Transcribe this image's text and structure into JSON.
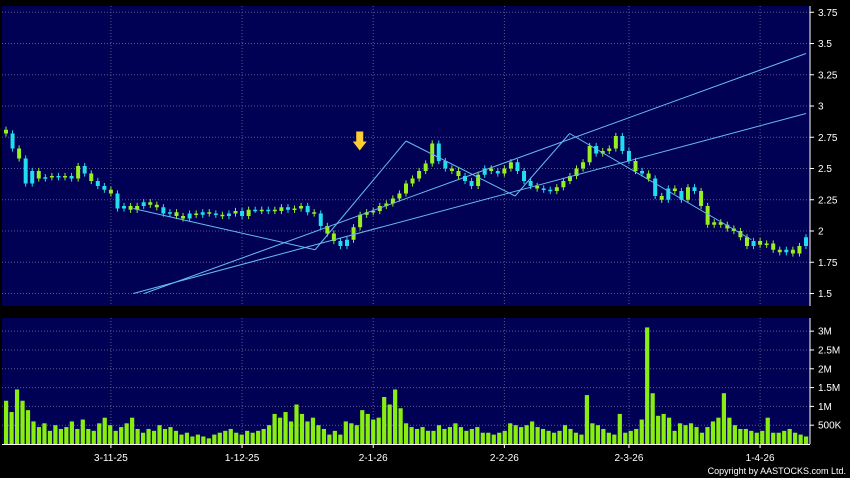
{
  "chart_data": [
    {
      "type": "candlestick",
      "title": "",
      "colors": {
        "up": "#99ee22",
        "down": "#22ddee",
        "background": "#000055",
        "grid": "#5a5a88",
        "trendline": "#66bbee",
        "arrow": "#ffcc33"
      },
      "ylim": [
        1.4,
        3.8
      ],
      "y_ticks": [
        {
          "v": 3.75,
          "label": "3.75"
        },
        {
          "v": 3.5,
          "label": "3.5"
        },
        {
          "v": 3.25,
          "label": "3.25"
        },
        {
          "v": 3,
          "label": "3"
        },
        {
          "v": 2.75,
          "label": "2.75"
        },
        {
          "v": 2.5,
          "label": "2.5"
        },
        {
          "v": 2.25,
          "label": "2.25"
        },
        {
          "v": 2,
          "label": "2"
        },
        {
          "v": 1.75,
          "label": "1.75"
        },
        {
          "v": 1.5,
          "label": "1.5"
        }
      ],
      "x_ticks": [
        {
          "i": 16,
          "label": "3-11-25"
        },
        {
          "i": 36,
          "label": "1-12-25"
        },
        {
          "i": 56,
          "label": "2-1-26"
        },
        {
          "i": 76,
          "label": "2-2-26"
        },
        {
          "i": 95,
          "label": "2-3-26"
        },
        {
          "i": 115,
          "label": "1-4-26"
        }
      ],
      "close": [
        2.78,
        2.66,
        2.58,
        2.38,
        2.48,
        2.42,
        2.43,
        2.44,
        2.43,
        2.44,
        2.42,
        2.52,
        2.46,
        2.4,
        2.36,
        2.33,
        2.3,
        2.18,
        2.2,
        2.17,
        2.2,
        2.23,
        2.21,
        2.19,
        2.14,
        2.15,
        2.12,
        2.1,
        2.14,
        2.13,
        2.15,
        2.14,
        2.13,
        2.12,
        2.14,
        2.16,
        2.12,
        2.17,
        2.17,
        2.16,
        2.17,
        2.16,
        2.19,
        2.17,
        2.18,
        2.2,
        2.15,
        2.14,
        2.04,
        1.98,
        1.92,
        1.88,
        1.93,
        2.03,
        2.13,
        2.15,
        2.16,
        2.2,
        2.22,
        2.26,
        2.3,
        2.38,
        2.42,
        2.48,
        2.54,
        2.7,
        2.56,
        2.5,
        2.48,
        2.44,
        2.4,
        2.36,
        2.45,
        2.5,
        2.48,
        2.46,
        2.5,
        2.55,
        2.48,
        2.4,
        2.36,
        2.34,
        2.33,
        2.32,
        2.35,
        2.4,
        2.44,
        2.5,
        2.55,
        2.68,
        2.62,
        2.64,
        2.66,
        2.76,
        2.64,
        2.56,
        2.48,
        2.46,
        2.42,
        2.28,
        2.25,
        2.34,
        2.32,
        2.25,
        2.35,
        2.32,
        2.2,
        2.05,
        2.07,
        2.05,
        2.02,
        2.0,
        1.95,
        1.88,
        1.92,
        1.89,
        1.9,
        1.85,
        1.83,
        1.85,
        1.82,
        1.88,
        1.95
      ],
      "dir": [
        "u",
        "d",
        "u",
        "d",
        "d",
        "u",
        "d",
        "u",
        "d",
        "u",
        "d",
        "u",
        "d",
        "u",
        "d",
        "d",
        "u",
        "d",
        "d",
        "u",
        "u",
        "d",
        "u",
        "u",
        "d",
        "d",
        "u",
        "u",
        "d",
        "u",
        "d",
        "u",
        "d",
        "u",
        "d",
        "u",
        "d",
        "u",
        "d",
        "u",
        "d",
        "u",
        "u",
        "d",
        "u",
        "u",
        "d",
        "u",
        "d",
        "u",
        "u",
        "d",
        "d",
        "u",
        "u",
        "u",
        "u",
        "u",
        "u",
        "u",
        "u",
        "u",
        "u",
        "u",
        "u",
        "u",
        "d",
        "d",
        "u",
        "u",
        "d",
        "d",
        "u",
        "d",
        "u",
        "d",
        "u",
        "u",
        "d",
        "d",
        "d",
        "u",
        "d",
        "d",
        "u",
        "u",
        "u",
        "u",
        "u",
        "u",
        "d",
        "u",
        "u",
        "u",
        "d",
        "d",
        "u",
        "d",
        "u",
        "d",
        "u",
        "d",
        "u",
        "d",
        "u",
        "d",
        "u",
        "u",
        "u",
        "u",
        "u",
        "u",
        "u",
        "u",
        "d",
        "u",
        "u",
        "u",
        "u",
        "d",
        "u",
        "u",
        "d"
      ],
      "trendlines": [
        {
          "points": [
            [
              38,
              1.5
            ],
            [
              220,
              3.42
            ]
          ]
        },
        {
          "points": [
            [
              35,
              1.5
            ],
            [
              220,
              2.94
            ]
          ]
        },
        {
          "points": [
            [
              35,
              2.18
            ],
            [
              85,
              1.85
            ]
          ]
        },
        {
          "points": [
            [
              85,
              1.85
            ],
            [
              110,
              2.72
            ]
          ]
        },
        {
          "points": [
            [
              110,
              2.72
            ],
            [
              140,
              2.28
            ]
          ]
        },
        {
          "points": [
            [
              140,
              2.28
            ],
            [
              155,
              2.78
            ]
          ]
        },
        {
          "points": [
            [
              155,
              2.78
            ],
            [
              205,
              1.93
            ]
          ]
        }
      ],
      "arrow": {
        "index": 97,
        "value": 2.62
      }
    },
    {
      "type": "bar",
      "title": "",
      "colors": {
        "bar": "#88ee11",
        "background": "#000055",
        "grid": "#5a5a88"
      },
      "ylim": [
        0,
        3350000
      ],
      "y_ticks": [
        {
          "v": 3000000,
          "label": "3M"
        },
        {
          "v": 2500000,
          "label": "2.5M"
        },
        {
          "v": 2000000,
          "label": "2M"
        },
        {
          "v": 1500000,
          "label": "1.5M"
        },
        {
          "v": 1000000,
          "label": "1M"
        },
        {
          "v": 500000,
          "label": "500K"
        }
      ],
      "values": [
        1150000,
        850000,
        1450000,
        1150000,
        900000,
        600000,
        450000,
        550000,
        350000,
        500000,
        400000,
        450000,
        600000,
        400000,
        650000,
        400000,
        350000,
        550000,
        700000,
        500000,
        350000,
        450000,
        550000,
        700000,
        400000,
        300000,
        400000,
        350000,
        500000,
        400000,
        450000,
        350000,
        250000,
        300000,
        200000,
        250000,
        200000,
        150000,
        250000,
        300000,
        350000,
        400000,
        300000,
        250000,
        350000,
        300000,
        350000,
        400000,
        500000,
        800000,
        700000,
        850000,
        600000,
        1050000,
        800000,
        600000,
        700000,
        500000,
        400000,
        250000,
        350000,
        250000,
        600000,
        550000,
        500000,
        900000,
        800000,
        650000,
        700000,
        1250000,
        1050000,
        1450000,
        950000,
        550000,
        450000,
        400000,
        450000,
        350000,
        350000,
        500000,
        400000,
        450000,
        550000,
        450000,
        350000,
        400000,
        450000,
        300000,
        300000,
        250000,
        300000,
        350000,
        550000,
        500000,
        450000,
        500000,
        600000,
        450000,
        400000,
        350000,
        300000,
        350000,
        500000,
        400000,
        300000,
        250000,
        1300000,
        550000,
        500000,
        400000,
        300000,
        250000,
        800000,
        300000,
        350000,
        400000,
        650000,
        3100000,
        1350000,
        750000,
        800000,
        700000,
        350000,
        550000,
        500000,
        550000,
        450000,
        300000,
        450000,
        600000,
        700000,
        1350000,
        700000,
        500000,
        400000,
        400000,
        350000,
        300000,
        350000,
        700000,
        300000,
        300000,
        350000,
        400000,
        300000,
        250000,
        200000
      ]
    }
  ],
  "x_labels": [
    "3-11-25",
    "1-12-25",
    "2-1-26",
    "2-2-26",
    "2-3-26",
    "1-4-26"
  ],
  "copyright": "Copyright by AASTOCKS.com Ltd."
}
